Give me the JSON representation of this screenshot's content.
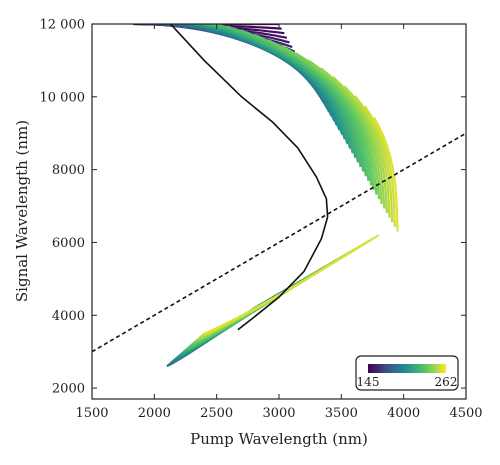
{
  "chart_data": {
    "type": "line",
    "title": "",
    "xlabel": "Pump Wavelength (nm)",
    "ylabel": "Signal Wavelength (nm)",
    "xlim": [
      1500,
      4500
    ],
    "ylim": [
      1700,
      12000
    ],
    "x_ticks": [
      1500,
      2000,
      2500,
      3000,
      3500,
      4000,
      4500
    ],
    "x_tick_labels": [
      "1500",
      "2000",
      "2500",
      "3000",
      "3500",
      "4000",
      "4500"
    ],
    "y_ticks": [
      2000,
      4000,
      6000,
      8000,
      10000,
      12000
    ],
    "y_tick_labels": [
      "2000",
      "4000",
      "6000",
      "8000",
      "10 000",
      "12 000"
    ],
    "grid": false,
    "colorbar": {
      "min": 145,
      "max": 262,
      "min_label": "145",
      "max_label": "262",
      "colormap": "viridis",
      "placement": "bottom-right"
    },
    "series": [
      {
        "name": "",
        "style": "solid black",
        "x": [
          2130,
          2400,
          2700,
          2950,
          3150,
          3300,
          3380,
          3390,
          3340,
          3200,
          3000,
          2800,
          2670
        ],
        "y": [
          12000,
          11000,
          10000,
          9300,
          8600,
          7800,
          7200,
          6700,
          6100,
          5200,
          4500,
          3950,
          3600
        ]
      },
      {
        "name": "",
        "style": "dashed black",
        "x": [
          1500,
          4500
        ],
        "y": [
          3000,
          9000
        ]
      }
    ],
    "families": [
      {
        "name": "",
        "color_range": [
          145,
          262
        ],
        "x_range": [
          1800,
          3950
        ],
        "y_range": [
          6200,
          12000
        ]
      },
      {
        "name": "",
        "color_range": [
          145,
          262
        ],
        "x_range": [
          2100,
          3800
        ],
        "y_range": [
          2600,
          6200
        ]
      }
    ]
  }
}
